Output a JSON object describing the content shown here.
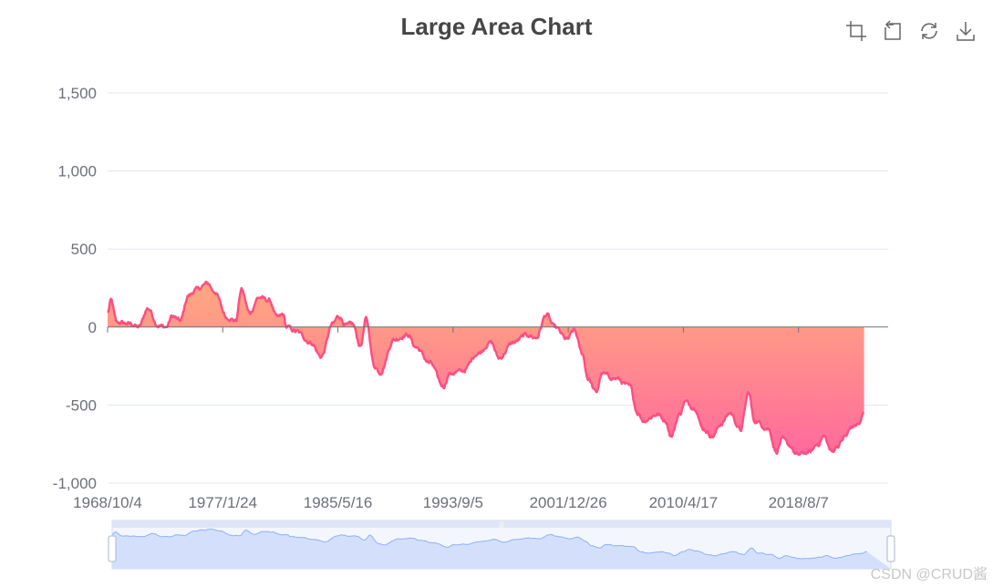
{
  "title": "Large Area Chart",
  "toolbox": {
    "icons": [
      "zoom-area-icon",
      "zoom-back-icon",
      "restore-icon",
      "download-icon"
    ]
  },
  "watermark": "CSDN @CRUD酱",
  "colors": {
    "line": "#ff4f82",
    "area_top": "#ffa97f",
    "area_bottom": "#ff6a9d",
    "grid": "#e0e6f1",
    "axis": "#6e7079",
    "slider_fill": "#d4e0fb",
    "slider_line": "#8fb0f7",
    "slider_border": "#d2dbee",
    "tool_icon": "#666666"
  },
  "chart_data": {
    "type": "area",
    "title": "Large Area Chart",
    "xlabel": "",
    "ylabel": "",
    "ylim": [
      -1000,
      1500
    ],
    "yticks": [
      -1000,
      -500,
      0,
      500,
      1000,
      1500
    ],
    "ytick_labels": [
      "-1,000",
      "-500",
      "0",
      "500",
      "1,000",
      "1,500"
    ],
    "xtick_labels": [
      "1968/10/4",
      "1977/1/24",
      "1985/5/16",
      "1993/9/5",
      "2001/12/26",
      "2010/4/17",
      "2018/8/7"
    ],
    "xlim": [
      "1968/10/4",
      "2025/1/24"
    ],
    "grid": true,
    "legend": "none",
    "datazoom": {
      "start_percent": 0,
      "end_percent": 100
    },
    "series": [
      {
        "name": "",
        "points": [
          [
            "1968/10/4",
            90
          ],
          [
            "1969/1/1",
            170
          ],
          [
            "1969/6/1",
            30
          ],
          [
            "1970/6/1",
            20
          ],
          [
            "1971/1/1",
            0
          ],
          [
            "1971/9/1",
            120
          ],
          [
            "1972/6/1",
            10
          ],
          [
            "1973/1/1",
            0
          ],
          [
            "1973/6/1",
            70
          ],
          [
            "1974/1/1",
            40
          ],
          [
            "1974/8/1",
            200
          ],
          [
            "1975/3/1",
            240
          ],
          [
            "1976/1/1",
            280
          ],
          [
            "1976/6/1",
            230
          ],
          [
            "1977/6/1",
            60
          ],
          [
            "1978/1/1",
            40
          ],
          [
            "1978/6/1",
            240
          ],
          [
            "1979/1/1",
            90
          ],
          [
            "1979/9/1",
            190
          ],
          [
            "1980/6/1",
            170
          ],
          [
            "1981/1/1",
            60
          ],
          [
            "1981/6/1",
            80
          ],
          [
            "1981/9/1",
            0
          ],
          [
            "1982/6/1",
            -30
          ],
          [
            "1983/6/1",
            -100
          ],
          [
            "1984/3/1",
            -190
          ],
          [
            "1985/1/1",
            20
          ],
          [
            "1985/6/1",
            70
          ],
          [
            "1986/1/1",
            10
          ],
          [
            "1986/6/1",
            20
          ],
          [
            "1987/1/1",
            -120
          ],
          [
            "1987/6/1",
            50
          ],
          [
            "1988/1/1",
            -250
          ],
          [
            "1988/6/1",
            -290
          ],
          [
            "1989/6/1",
            -80
          ],
          [
            "1990/6/1",
            -50
          ],
          [
            "1991/1/1",
            -130
          ],
          [
            "1992/1/1",
            -230
          ],
          [
            "1993/1/1",
            -380
          ],
          [
            "1993/6/1",
            -300
          ],
          [
            "1994/6/1",
            -280
          ],
          [
            "1995/6/1",
            -170
          ],
          [
            "1996/6/1",
            -100
          ],
          [
            "1997/1/1",
            -200
          ],
          [
            "1998/1/1",
            -100
          ],
          [
            "1999/1/1",
            -50
          ],
          [
            "1999/9/1",
            -70
          ],
          [
            "2000/6/1",
            80
          ],
          [
            "2001/1/1",
            0
          ],
          [
            "2001/12/1",
            -80
          ],
          [
            "2002/6/1",
            -20
          ],
          [
            "2003/1/1",
            -170
          ],
          [
            "2003/6/1",
            -330
          ],
          [
            "2004/1/1",
            -420
          ],
          [
            "2004/6/1",
            -300
          ],
          [
            "2005/6/1",
            -330
          ],
          [
            "2006/6/1",
            -380
          ],
          [
            "2007/1/1",
            -550
          ],
          [
            "2007/6/1",
            -600
          ],
          [
            "2008/6/1",
            -560
          ],
          [
            "2009/1/1",
            -600
          ],
          [
            "2009/6/1",
            -700
          ],
          [
            "2010/1/1",
            -560
          ],
          [
            "2010/6/1",
            -480
          ],
          [
            "2011/3/1",
            -520
          ],
          [
            "2011/9/1",
            -650
          ],
          [
            "2012/6/1",
            -700
          ],
          [
            "2013/1/1",
            -620
          ],
          [
            "2013/9/1",
            -550
          ],
          [
            "2014/6/1",
            -660
          ],
          [
            "2015/1/1",
            -420
          ],
          [
            "2015/6/1",
            -600
          ],
          [
            "2016/6/1",
            -650
          ],
          [
            "2017/1/1",
            -800
          ],
          [
            "2017/6/1",
            -720
          ],
          [
            "2018/1/1",
            -760
          ],
          [
            "2018/6/1",
            -820
          ],
          [
            "2019/6/1",
            -800
          ],
          [
            "2020/1/1",
            -750
          ],
          [
            "2020/6/1",
            -700
          ],
          [
            "2021/1/1",
            -800
          ],
          [
            "2021/6/1",
            -760
          ],
          [
            "2022/1/1",
            -700
          ],
          [
            "2022/6/1",
            -640
          ],
          [
            "2023/1/1",
            -620
          ],
          [
            "2023/5/1",
            -550
          ]
        ]
      }
    ]
  }
}
